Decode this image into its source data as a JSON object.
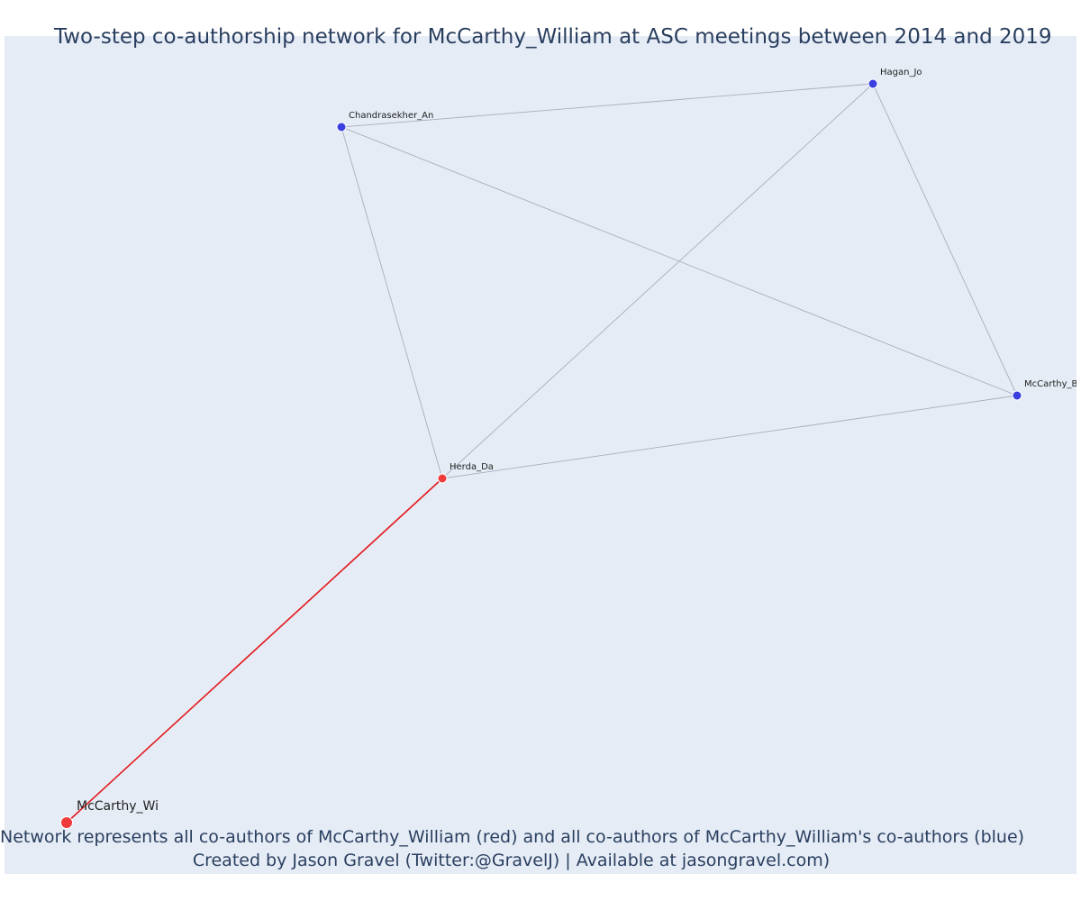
{
  "title": "Two-step co-authorship network for McCarthy_William at ASC meetings between 2014 and 2019",
  "caption": {
    "line1": "Network represents all co-authors of McCarthy_William (red) and all co-authors of McCarthy_William's co-authors (blue)",
    "line2": "Created by Jason Gravel (Twitter:@GravelJ) | Available at jasongravel.com)"
  },
  "colors": {
    "background": "#e5ecf6",
    "red_node": "#ef3b3b",
    "blue_node": "#3a3fe0",
    "red_edge": "#e31a1c",
    "gray_edge": "#a9adbf",
    "text": "#2a3f5f"
  },
  "chart_data": {
    "type": "network",
    "nodes": [
      {
        "id": "McCarthy_Wi",
        "label": "McCarthy_Wi",
        "group": "focal",
        "color": "red"
      },
      {
        "id": "Herda_Da",
        "label": "Herda_Da",
        "group": "co-author",
        "color": "red"
      },
      {
        "id": "Chandrasekher_An",
        "label": "Chandrasekher_An",
        "group": "second-step",
        "color": "blue"
      },
      {
        "id": "Hagan_Jo",
        "label": "Hagan_Jo",
        "group": "second-step",
        "color": "blue"
      },
      {
        "id": "McCarthy_Bi",
        "label": "McCarthy_Bi",
        "group": "second-step",
        "color": "blue"
      }
    ],
    "edges": [
      {
        "source": "McCarthy_Wi",
        "target": "Herda_Da",
        "color": "red"
      },
      {
        "source": "Herda_Da",
        "target": "Chandrasekher_An",
        "color": "gray"
      },
      {
        "source": "Herda_Da",
        "target": "Hagan_Jo",
        "color": "gray"
      },
      {
        "source": "Herda_Da",
        "target": "McCarthy_Bi",
        "color": "gray"
      },
      {
        "source": "Chandrasekher_An",
        "target": "Hagan_Jo",
        "color": "gray"
      },
      {
        "source": "Chandrasekher_An",
        "target": "McCarthy_Bi",
        "color": "gray"
      },
      {
        "source": "Hagan_Jo",
        "target": "McCarthy_Bi",
        "color": "gray"
      }
    ]
  }
}
